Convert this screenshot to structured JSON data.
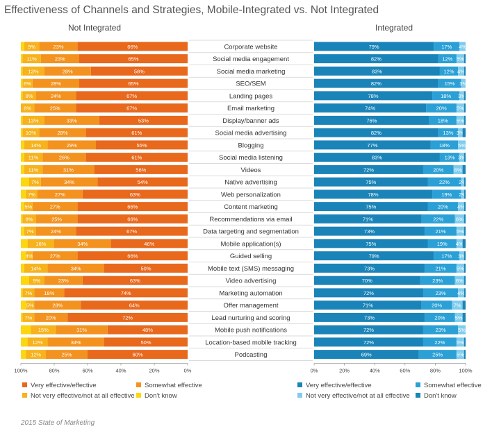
{
  "title": "Effectiveness of Channels and Strategies, Mobile-Integrated vs. Not Integrated",
  "left_panel_label": "Not Integrated",
  "right_panel_label": "Integrated",
  "footer": "2015 State of Marketing",
  "colors": {
    "left_effective": "#e8681c",
    "left_somewhat": "#f3921f",
    "left_not_very": "#f7b21c",
    "left_dont_know": "#fcd70f",
    "right_effective": "#1a84b9",
    "right_somewhat": "#2aa0d6",
    "right_not_very": "#7fcdee",
    "right_dont_know": "#1a84b9"
  },
  "chart_data": [
    {
      "type": "bar",
      "orientation": "horizontal",
      "stacked": true,
      "direction": "right-to-left",
      "panel": "Not Integrated",
      "xlim": [
        0,
        100
      ],
      "xticks": [
        "100%",
        "80%",
        "60%",
        "40%",
        "20%",
        "0%"
      ],
      "categories": [
        "Corporate website",
        "Social media engagement",
        "Social media marketing",
        "SEO/SEM",
        "Landing pages",
        "Email marketing",
        "Display/banner ads",
        "Social media advertising",
        "Blogging",
        "Social media listening",
        "Videos",
        "Native advertising",
        "Web personalization",
        "Content marketing",
        "Recommendations via email",
        "Data targeting and segmentation",
        "Mobile application(s)",
        "Guided selling",
        "Mobile text (SMS) messaging",
        "Video advertising",
        "Marketing automation",
        "Offer management",
        "Lead nurturing and scoring",
        "Mobile push notifications",
        "Location-based mobile tracking",
        "Podcasting"
      ],
      "series": [
        {
          "name": "Very effective/effective",
          "values": [
            66,
            65,
            58,
            65,
            67,
            67,
            53,
            61,
            55,
            61,
            56,
            54,
            63,
            66,
            66,
            67,
            46,
            66,
            50,
            63,
            74,
            64,
            72,
            48,
            50,
            60
          ]
        },
        {
          "name": "Somewhat effective",
          "values": [
            23,
            23,
            28,
            28,
            24,
            25,
            33,
            28,
            29,
            26,
            31,
            34,
            27,
            27,
            25,
            24,
            34,
            27,
            34,
            23,
            18,
            28,
            20,
            31,
            34,
            25
          ]
        },
        {
          "name": "Not very effective/not at all effective",
          "values": [
            9,
            11,
            13,
            6,
            8,
            8,
            13,
            10,
            14,
            11,
            11,
            7,
            7,
            5,
            8,
            7,
            16,
            4,
            14,
            9,
            7,
            5,
            7,
            15,
            12,
            12
          ]
        },
        {
          "name": "Don't know",
          "values": [
            2,
            1,
            1,
            1,
            1,
            0,
            1,
            1,
            2,
            2,
            2,
            5,
            3,
            2,
            1,
            2,
            4,
            3,
            2,
            5,
            1,
            3,
            1,
            6,
            4,
            3
          ]
        }
      ],
      "labels": [
        [
          "66%",
          "23%",
          "9%"
        ],
        [
          "65%",
          "23%",
          "11%"
        ],
        [
          "58%",
          "28%",
          "13%"
        ],
        [
          "65%",
          "28%",
          "6%"
        ],
        [
          "67%",
          "24%",
          "8%"
        ],
        [
          "67%",
          "25%",
          "8%"
        ],
        [
          "53%",
          "33%",
          "13%"
        ],
        [
          "61%",
          "28%",
          "10%"
        ],
        [
          "55%",
          "29%",
          "14%"
        ],
        [
          "61%",
          "26%",
          "11%"
        ],
        [
          "56%",
          "31%",
          "11%"
        ],
        [
          "54%",
          "34%",
          "7%"
        ],
        [
          "63%",
          "27%",
          "7%"
        ],
        [
          "66%",
          "27%",
          "5%"
        ],
        [
          "66%",
          "25%",
          "8%"
        ],
        [
          "67%",
          "24%",
          "7%"
        ],
        [
          "46%",
          "34%",
          "16%"
        ],
        [
          "66%",
          "27%",
          "4%"
        ],
        [
          "50%",
          "34%",
          "14%"
        ],
        [
          "63%",
          "23%",
          "9%"
        ],
        [
          "74%",
          "18%",
          "7%"
        ],
        [
          "64%",
          "28%",
          "5%"
        ],
        [
          "72%",
          "20%",
          "7%"
        ],
        [
          "48%",
          "31%",
          "15%"
        ],
        [
          "50%",
          "34%",
          "12%"
        ],
        [
          "60%",
          "25%",
          "12%"
        ]
      ]
    },
    {
      "type": "bar",
      "orientation": "horizontal",
      "stacked": true,
      "direction": "left-to-right",
      "panel": "Integrated",
      "xlim": [
        0,
        100
      ],
      "xticks": [
        "0%",
        "20%",
        "40%",
        "60%",
        "80%",
        "100%"
      ],
      "categories": [
        "Corporate website",
        "Social media engagement",
        "Social media marketing",
        "SEO/SEM",
        "Landing pages",
        "Email marketing",
        "Display/banner ads",
        "Social media advertising",
        "Blogging",
        "Social media listening",
        "Videos",
        "Native advertising",
        "Web personalization",
        "Content marketing",
        "Recommendations via email",
        "Data targeting and segmentation",
        "Mobile application(s)",
        "Guided selling",
        "Mobile text (SMS) messaging",
        "Video advertising",
        "Marketing automation",
        "Offer management",
        "Lead nurturing and scoring",
        "Mobile push notifications",
        "Location-based mobile tracking",
        "Podcasting"
      ],
      "series": [
        {
          "name": "Very effective/effective",
          "values": [
            79,
            82,
            83,
            82,
            78,
            74,
            76,
            82,
            77,
            83,
            72,
            75,
            78,
            75,
            71,
            73,
            75,
            79,
            73,
            70,
            72,
            71,
            73,
            72,
            72,
            69
          ]
        },
        {
          "name": "Somewhat effective",
          "values": [
            17,
            12,
            12,
            15,
            18,
            20,
            18,
            13,
            18,
            13,
            20,
            22,
            19,
            20,
            22,
            21,
            19,
            17,
            21,
            23,
            23,
            20,
            20,
            23,
            22,
            25
          ]
        },
        {
          "name": "Not very effective/not at all effective",
          "values": [
            4,
            5,
            4,
            3,
            3,
            5,
            5,
            3,
            5,
            3,
            6,
            2,
            2,
            4,
            6,
            5,
            4,
            3,
            5,
            6,
            4,
            7,
            5,
            5,
            5,
            5
          ]
        },
        {
          "name": "Don't know",
          "values": [
            0,
            1,
            1,
            0,
            1,
            1,
            1,
            2,
            0,
            1,
            2,
            1,
            1,
            1,
            1,
            1,
            2,
            1,
            1,
            1,
            1,
            2,
            2,
            0,
            1,
            1
          ]
        }
      ],
      "labels": [
        [
          "79%",
          "17%",
          "4%"
        ],
        [
          "82%",
          "12%",
          "5%"
        ],
        [
          "83%",
          "12%",
          "4%"
        ],
        [
          "82%",
          "15%",
          "3%"
        ],
        [
          "78%",
          "18%",
          "3%"
        ],
        [
          "74%",
          "20%",
          "5%"
        ],
        [
          "76%",
          "18%",
          "5%"
        ],
        [
          "82%",
          "13%",
          "3%"
        ],
        [
          "77%",
          "18%",
          "5%"
        ],
        [
          "83%",
          "13%",
          "3%"
        ],
        [
          "72%",
          "20%",
          "6%"
        ],
        [
          "75%",
          "22%",
          "2%"
        ],
        [
          "78%",
          "19%",
          "2%"
        ],
        [
          "75%",
          "20%",
          "4%"
        ],
        [
          "71%",
          "22%",
          "6%"
        ],
        [
          "73%",
          "21%",
          "5%"
        ],
        [
          "75%",
          "19%",
          "4%"
        ],
        [
          "79%",
          "17%",
          "3%"
        ],
        [
          "73%",
          "21%",
          "5%"
        ],
        [
          "70%",
          "23%",
          "6%"
        ],
        [
          "72%",
          "23%",
          "4%"
        ],
        [
          "71%",
          "20%",
          "7%"
        ],
        [
          "73%",
          "20%",
          "5%"
        ],
        [
          "72%",
          "23%",
          "5%"
        ],
        [
          "72%",
          "22%",
          "5%"
        ],
        [
          "69%",
          "25%",
          "5%"
        ]
      ]
    }
  ],
  "legend_left": [
    "Very effective/effective",
    "Somewhat effective",
    "Not very effective/not at all effective",
    "Don't know"
  ],
  "legend_right": [
    "Very effective/effective",
    "Somewhat effective",
    "Not very effective/not at all effective",
    "Don't know"
  ]
}
